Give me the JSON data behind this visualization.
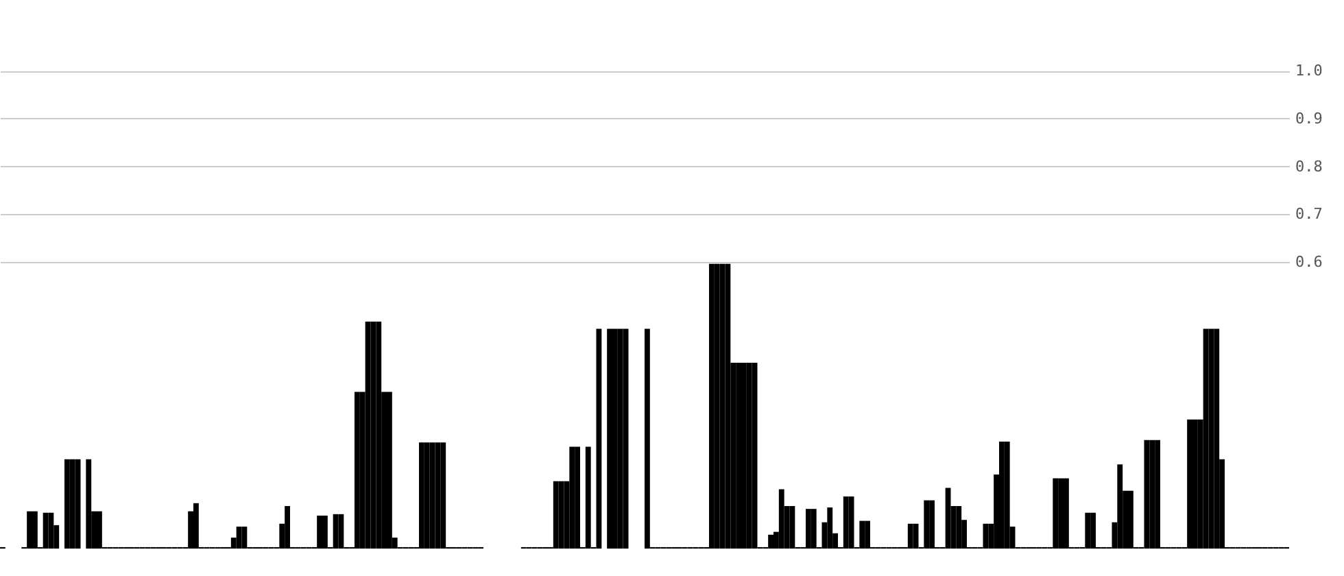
{
  "chart_data": {
    "type": "bar",
    "color": "#000000",
    "grid": "y",
    "ylim": [
      0,
      1.148
    ],
    "yticks": [
      {
        "value": 0.6,
        "label": "0.6"
      },
      {
        "value": 0.7,
        "label": "0.7"
      },
      {
        "value": 0.8,
        "label": "0.8"
      },
      {
        "value": 0.9,
        "label": "0.9"
      },
      {
        "value": 1.0,
        "label": "1.0"
      }
    ],
    "categories": [
      null,
      null,
      null,
      null,
      null,
      null,
      null,
      null,
      null,
      null,
      null,
      null,
      null,
      null,
      null,
      null,
      null,
      null,
      null,
      null,
      null,
      null,
      null,
      null,
      null,
      null,
      null,
      null,
      null,
      null,
      null,
      null,
      null,
      null,
      null,
      null,
      null,
      null,
      null,
      null,
      null,
      null,
      null,
      null,
      null,
      null,
      null,
      null,
      null,
      null,
      null,
      null,
      null,
      null,
      null,
      null,
      null,
      null,
      null,
      null,
      null,
      null,
      null,
      null,
      null,
      null,
      null,
      null,
      null,
      null,
      null,
      null,
      null,
      null,
      null,
      null,
      null,
      null,
      null,
      null,
      null,
      null,
      null,
      null,
      null,
      null,
      null,
      null,
      null,
      null,
      null,
      null,
      null,
      null,
      null,
      null,
      null,
      null,
      null,
      null,
      null,
      null,
      null,
      null,
      null,
      null,
      null,
      null,
      null,
      null,
      null,
      null,
      null,
      null,
      null,
      null,
      null,
      null,
      null,
      null,
      null,
      null,
      null,
      null,
      null,
      null,
      null,
      null,
      null,
      null,
      null,
      null,
      null,
      null,
      null,
      null,
      null,
      null,
      null,
      null,
      null,
      null,
      null,
      null,
      null,
      null,
      null,
      null,
      null,
      null,
      null,
      null,
      null,
      null,
      null,
      null,
      null,
      null,
      null,
      null,
      null,
      null,
      null,
      null,
      null,
      null,
      null,
      null,
      null,
      null,
      null,
      null,
      null,
      null,
      null,
      null,
      null,
      null,
      null,
      null,
      null,
      null,
      null,
      null,
      null,
      null,
      null,
      null,
      null,
      null,
      null,
      null,
      null,
      null,
      null,
      null,
      null,
      null,
      null,
      null,
      null,
      null,
      null,
      null,
      null,
      null,
      null,
      null,
      null,
      null,
      null,
      null,
      null,
      null,
      null,
      null,
      null,
      null,
      null,
      null,
      null,
      null,
      null,
      null,
      null,
      null,
      null,
      null,
      null,
      null,
      null,
      null,
      null,
      null,
      null,
      null,
      null,
      null,
      null,
      null
    ],
    "values": [
      0.003,
      0,
      0,
      0,
      0.003,
      0.078,
      0.078,
      0.003,
      0.075,
      0.075,
      0.049,
      0,
      0.187,
      0.187,
      0.187,
      0,
      0.187,
      0.078,
      0.078,
      0.003,
      0.003,
      0.003,
      0.003,
      0.003,
      0.003,
      0.003,
      0.003,
      0.003,
      0.003,
      0.003,
      0.003,
      0.003,
      0.003,
      0.003,
      0.003,
      0.078,
      0.095,
      0.003,
      0.003,
      0.003,
      0.003,
      0.003,
      0.003,
      0.023,
      0.046,
      0.046,
      0.003,
      0.003,
      0.003,
      0.003,
      0.003,
      0.003,
      0.052,
      0.089,
      0.003,
      0.003,
      0.003,
      0.003,
      0.003,
      0.069,
      0.069,
      0.003,
      0.072,
      0.072,
      0.003,
      0.003,
      0.328,
      0.328,
      0.475,
      0.475,
      0.475,
      0.328,
      0.328,
      0.023,
      0.003,
      0.003,
      0.003,
      0.003,
      0.222,
      0.222,
      0.222,
      0.222,
      0.222,
      0.003,
      0.003,
      0.003,
      0.003,
      0.003,
      0.003,
      0.003,
      0,
      0,
      0,
      0,
      0,
      0,
      0,
      0.003,
      0.003,
      0.003,
      0.003,
      0.003,
      0.003,
      0.141,
      0.141,
      0.141,
      0.213,
      0.213,
      0.003,
      0.213,
      0.003,
      0.46,
      0,
      0.46,
      0.46,
      0.46,
      0.46,
      0,
      0,
      0,
      0.46,
      0.003,
      0.003,
      0.003,
      0.003,
      0.003,
      0.003,
      0.003,
      0.003,
      0.003,
      0.003,
      0.003,
      0.596,
      0.596,
      0.596,
      0.596,
      0.389,
      0.389,
      0.389,
      0.389,
      0.389,
      0.003,
      0.003,
      0.029,
      0.035,
      0.124,
      0.089,
      0.089,
      0.003,
      0.003,
      0.083,
      0.083,
      0.003,
      0.055,
      0.086,
      0.032,
      0.003,
      0.109,
      0.109,
      0.003,
      0.058,
      0.058,
      0.003,
      0.003,
      0.003,
      0.003,
      0.003,
      0.003,
      0.003,
      0.052,
      0.052,
      0.003,
      0.101,
      0.101,
      0.003,
      0.003,
      0.127,
      0.089,
      0.089,
      0.06,
      0.003,
      0.003,
      0.003,
      0.052,
      0.052,
      0.155,
      0.224,
      0.224,
      0.046,
      0.003,
      0.003,
      0.003,
      0.003,
      0.003,
      0.003,
      0.003,
      0.147,
      0.147,
      0.147,
      0.003,
      0.003,
      0.003,
      0.075,
      0.075,
      0.003,
      0.003,
      0.003,
      0.055,
      0.176,
      0.121,
      0.121,
      0.003,
      0.003,
      0.227,
      0.227,
      0.227,
      0.003,
      0.003,
      0.003,
      0.003,
      0.003,
      0.27,
      0.27,
      0.27,
      0.46,
      0.46,
      0.46,
      0.187,
      0.003,
      0.003,
      0.003,
      0.003,
      0.003,
      0.003,
      0.003,
      0.003,
      0.003,
      0.003,
      0.003,
      0.003
    ]
  }
}
